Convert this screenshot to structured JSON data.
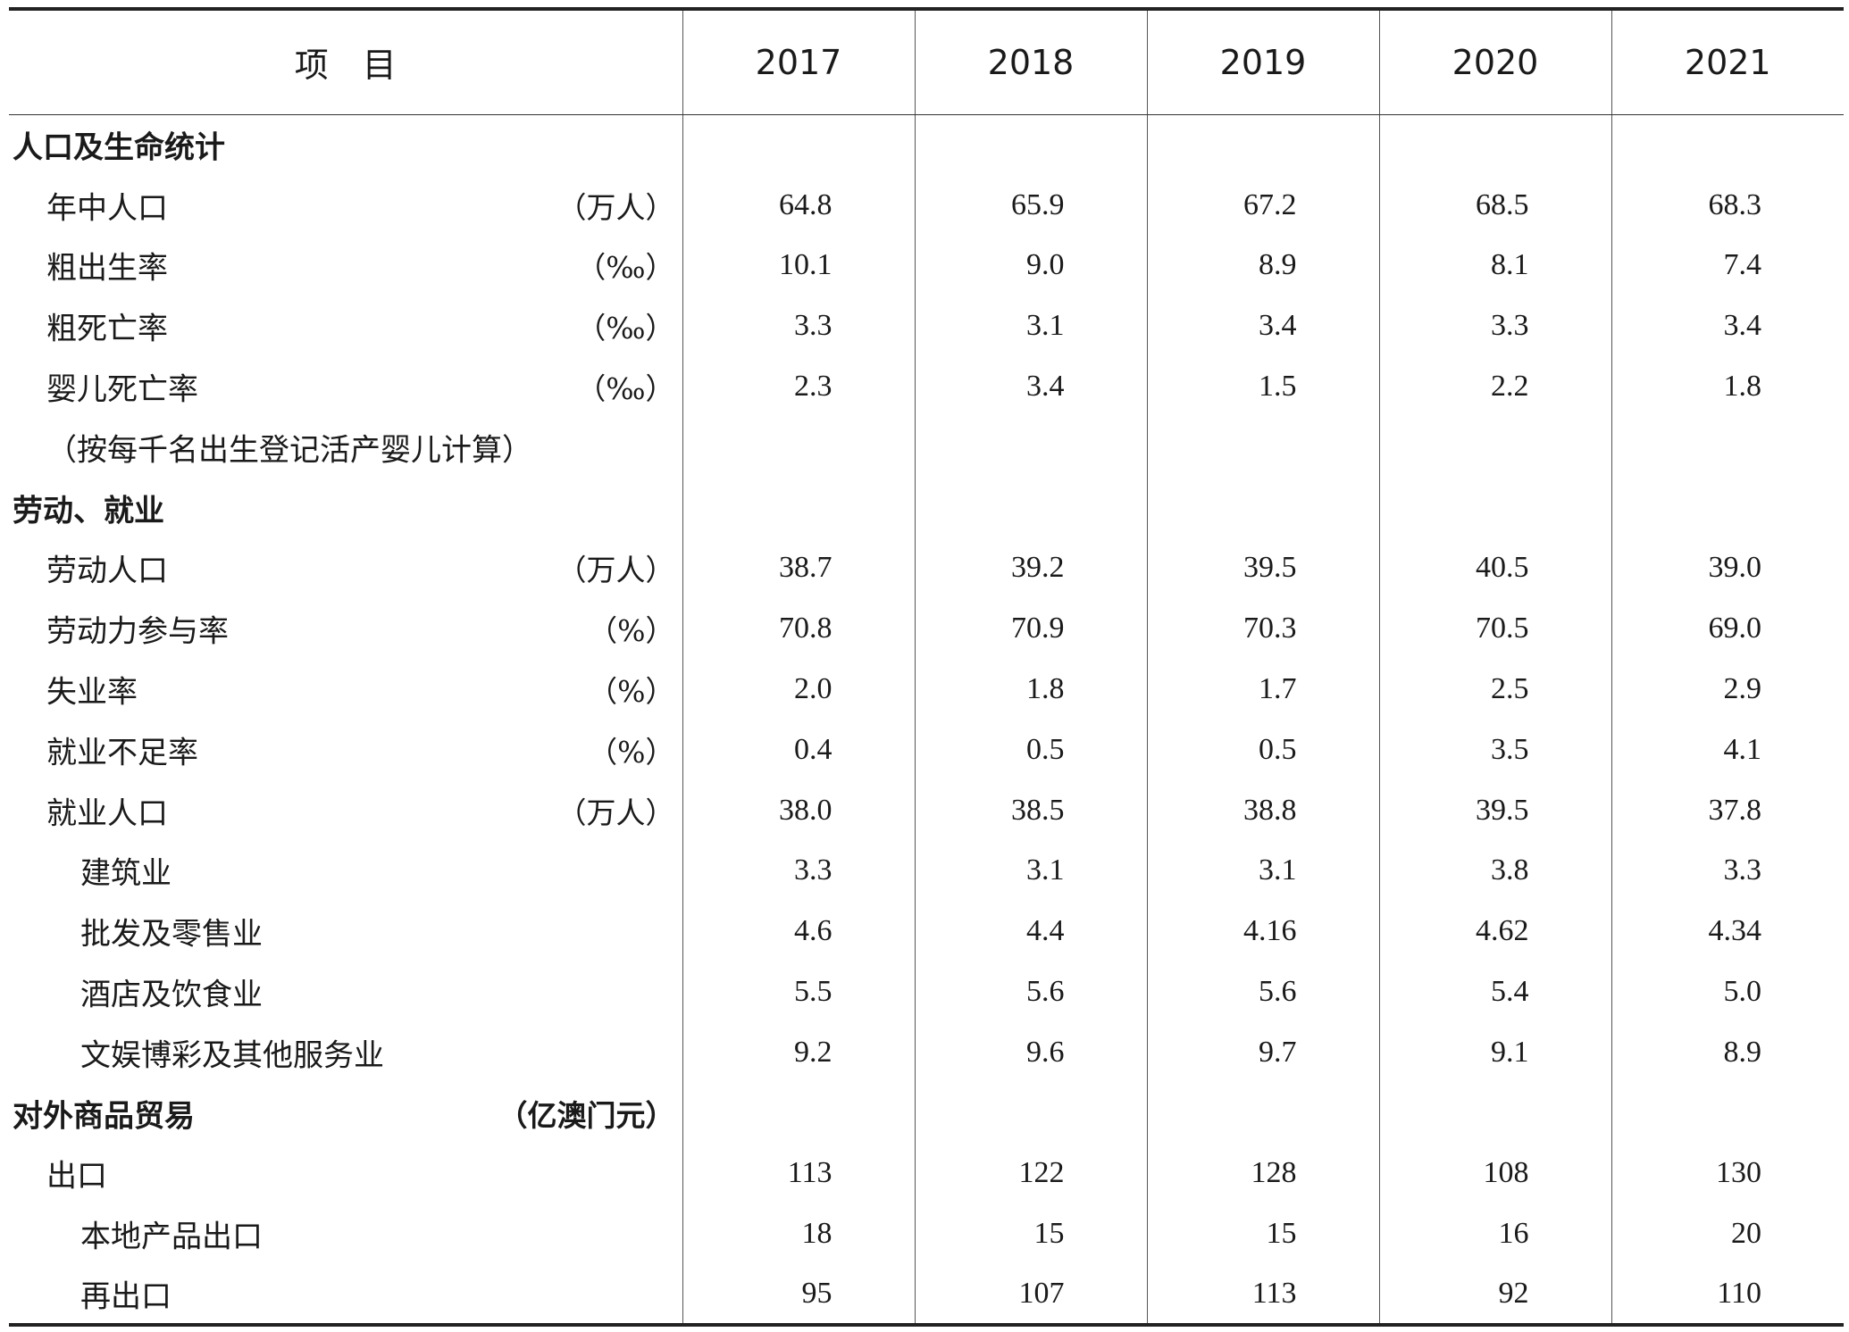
{
  "table": {
    "header": {
      "item": "项　目",
      "years": [
        "2017",
        "2018",
        "2019",
        "2020",
        "2021"
      ]
    },
    "rows": [
      {
        "type": "section",
        "label": "人口及生命统计",
        "unit": "",
        "values": [
          "",
          "",
          "",
          "",
          ""
        ]
      },
      {
        "type": "l1",
        "label": "年中人口",
        "unit": "（万人）",
        "values": [
          "64.8",
          "65.9",
          "67.2",
          "68.5",
          "68.3"
        ]
      },
      {
        "type": "l1",
        "label": "粗出生率",
        "unit": "（‰）",
        "values": [
          "10.1",
          "9.0",
          "8.9",
          "8.1",
          "7.4"
        ]
      },
      {
        "type": "l1",
        "label": "粗死亡率",
        "unit": "（‰）",
        "values": [
          "3.3",
          "3.1",
          "3.4",
          "3.3",
          "3.4"
        ]
      },
      {
        "type": "l1",
        "label": "婴儿死亡率",
        "unit": "（‰）",
        "values": [
          "2.3",
          "3.4",
          "1.5",
          "2.2",
          "1.8"
        ]
      },
      {
        "type": "note",
        "label": "（按每千名出生登记活产婴儿计算）",
        "unit": "",
        "values": [
          "",
          "",
          "",
          "",
          ""
        ]
      },
      {
        "type": "section",
        "label": "劳动、就业",
        "unit": "",
        "values": [
          "",
          "",
          "",
          "",
          ""
        ]
      },
      {
        "type": "l1",
        "label": "劳动人口",
        "unit": "（万人）",
        "values": [
          "38.7",
          "39.2",
          "39.5",
          "40.5",
          "39.0"
        ]
      },
      {
        "type": "l1",
        "label": "劳动力参与率",
        "unit": "（%）",
        "values": [
          "70.8",
          "70.9",
          "70.3",
          "70.5",
          "69.0"
        ]
      },
      {
        "type": "l1",
        "label": "失业率",
        "unit": "（%）",
        "values": [
          "2.0",
          "1.8",
          "1.7",
          "2.5",
          "2.9"
        ]
      },
      {
        "type": "l1",
        "label": "就业不足率",
        "unit": "（%）",
        "values": [
          "0.4",
          "0.5",
          "0.5",
          "3.5",
          "4.1"
        ]
      },
      {
        "type": "l1",
        "label": "就业人口",
        "unit": "（万人）",
        "values": [
          "38.0",
          "38.5",
          "38.8",
          "39.5",
          "37.8"
        ]
      },
      {
        "type": "l2",
        "label": "建筑业",
        "unit": "",
        "values": [
          "3.3",
          "3.1",
          "3.1",
          "3.8",
          "3.3"
        ]
      },
      {
        "type": "l2",
        "label": "批发及零售业",
        "unit": "",
        "values": [
          "4.6",
          "4.4",
          "4.16",
          "4.62",
          "4.34"
        ]
      },
      {
        "type": "l2",
        "label": "酒店及饮食业",
        "unit": "",
        "values": [
          "5.5",
          "5.6",
          "5.6",
          "5.4",
          "5.0"
        ]
      },
      {
        "type": "l2",
        "label": "文娱博彩及其他服务业",
        "unit": "",
        "values": [
          "9.2",
          "9.6",
          "9.7",
          "9.1",
          "8.9"
        ]
      },
      {
        "type": "section",
        "label": "对外商品贸易",
        "unit": "（亿澳门元）",
        "values": [
          "",
          "",
          "",
          "",
          ""
        ]
      },
      {
        "type": "l1",
        "label": "出口",
        "unit": "",
        "values": [
          "113",
          "122",
          "128",
          "108",
          "130"
        ]
      },
      {
        "type": "l2",
        "label": "本地产品出口",
        "unit": "",
        "values": [
          "18",
          "15",
          "15",
          "16",
          "20"
        ]
      },
      {
        "type": "l2",
        "label": "再出口",
        "unit": "",
        "values": [
          "95",
          "107",
          "113",
          "92",
          "110"
        ]
      }
    ]
  }
}
